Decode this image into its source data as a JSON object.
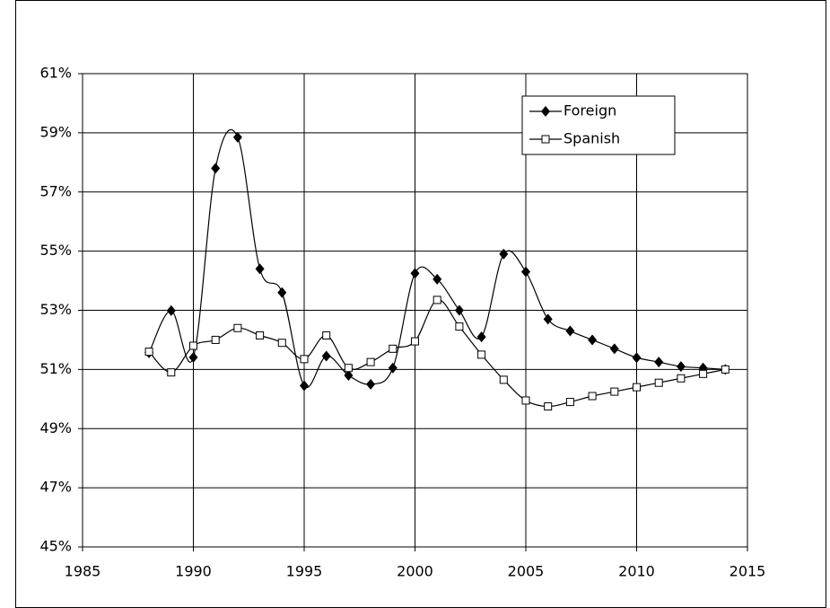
{
  "chart_data": {
    "type": "line",
    "x": [
      1988,
      1989,
      1990,
      1991,
      1992,
      1993,
      1994,
      1995,
      1996,
      1997,
      1998,
      1999,
      2000,
      2001,
      2002,
      2003,
      2004,
      2005,
      2006,
      2007,
      2008,
      2009,
      2010,
      2011,
      2012,
      2013,
      2014
    ],
    "series": [
      {
        "name": "Foreign",
        "color": "#000000",
        "marker": "diamond",
        "values": [
          51.56,
          52.99,
          51.41,
          57.8,
          58.85,
          54.4,
          53.6,
          50.45,
          51.45,
          50.8,
          50.5,
          51.05,
          54.25,
          54.05,
          53.0,
          52.1,
          54.9,
          54.3,
          52.7,
          52.3,
          52.0,
          51.7,
          51.4,
          51.25,
          51.1,
          51.05,
          51.0
        ]
      },
      {
        "name": "Spanish",
        "color": "#000000",
        "marker": "square",
        "values": [
          51.6,
          50.9,
          51.8,
          52.0,
          52.4,
          52.15,
          51.9,
          51.35,
          52.15,
          51.05,
          51.25,
          51.7,
          51.95,
          53.35,
          52.45,
          51.5,
          50.65,
          49.95,
          49.75,
          49.9,
          50.1,
          50.25,
          50.4,
          50.55,
          50.7,
          50.85,
          51.0
        ]
      }
    ],
    "xlim": [
      1985,
      2015
    ],
    "xticks": [
      1985,
      1990,
      1995,
      2000,
      2005,
      2010,
      2015
    ],
    "ylim": [
      45,
      61
    ],
    "yticks": [
      {
        "value": 45,
        "label": "45%"
      },
      {
        "value": 47,
        "label": "47%"
      },
      {
        "value": 49,
        "label": "49%"
      },
      {
        "value": 51,
        "label": "51%"
      },
      {
        "value": 53,
        "label": "53%"
      },
      {
        "value": 55,
        "label": "55%"
      },
      {
        "value": 57,
        "label": "57%"
      },
      {
        "value": 59,
        "label": "59%"
      },
      {
        "value": 61,
        "label": "61%"
      }
    ],
    "grid": true,
    "legend": "upper right"
  }
}
